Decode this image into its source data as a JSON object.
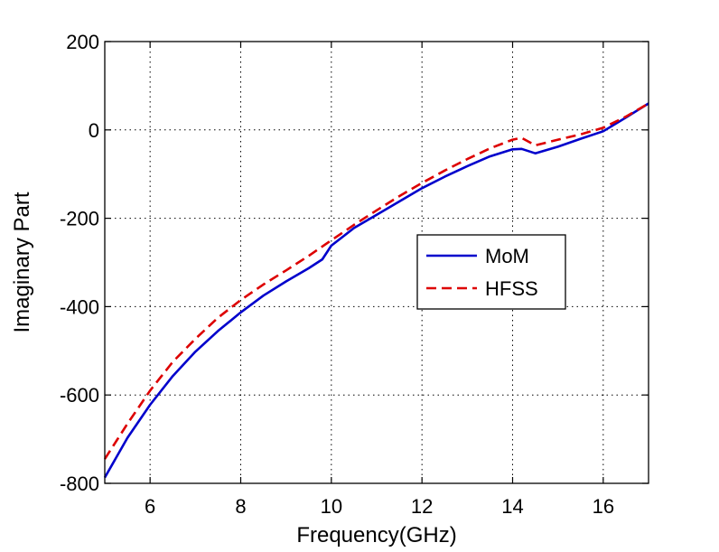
{
  "chart_data": {
    "type": "line",
    "title": "",
    "xlabel": "Frequency(GHz)",
    "ylabel": "Imaginary Part",
    "xlim": [
      5,
      17
    ],
    "ylim": [
      -800,
      200
    ],
    "xticks": [
      6,
      8,
      10,
      12,
      14,
      16
    ],
    "yticks": [
      -800,
      -600,
      -400,
      -200,
      0,
      200
    ],
    "xtick_labels": [
      "6",
      "8",
      "10",
      "12",
      "14",
      "16"
    ],
    "ytick_labels": [
      "-800",
      "-600",
      "-400",
      "-200",
      "0",
      "200"
    ],
    "grid": true,
    "legend_position": "center-right",
    "series": [
      {
        "name": "MoM",
        "color": "#0000cc",
        "style": "solid",
        "x": [
          5.0,
          5.5,
          6.0,
          6.5,
          7.0,
          7.5,
          8.0,
          8.5,
          9.0,
          9.5,
          9.8,
          10.0,
          10.5,
          11.0,
          11.5,
          12.0,
          12.5,
          13.0,
          13.5,
          14.0,
          14.2,
          14.5,
          15.0,
          15.5,
          16.0,
          16.5,
          17.0
        ],
        "y": [
          -787,
          -697,
          -622,
          -557,
          -502,
          -455,
          -413,
          -375,
          -343,
          -313,
          -293,
          -262,
          -222,
          -192,
          -162,
          -132,
          -106,
          -82,
          -60,
          -44,
          -43,
          -53,
          -38,
          -20,
          -3,
          28,
          60
        ]
      },
      {
        "name": "HFSS",
        "color": "#dd0000",
        "style": "dashed",
        "x": [
          5.0,
          5.5,
          6.0,
          6.5,
          7.0,
          7.5,
          8.0,
          8.5,
          9.0,
          9.5,
          10.0,
          10.5,
          11.0,
          11.5,
          12.0,
          12.5,
          13.0,
          13.5,
          14.0,
          14.2,
          14.5,
          15.0,
          15.5,
          16.0,
          16.5,
          17.0
        ],
        "y": [
          -745,
          -665,
          -590,
          -525,
          -473,
          -425,
          -385,
          -350,
          -318,
          -285,
          -250,
          -215,
          -182,
          -150,
          -120,
          -92,
          -66,
          -42,
          -22,
          -18,
          -35,
          -22,
          -10,
          5,
          30,
          60
        ]
      }
    ]
  }
}
